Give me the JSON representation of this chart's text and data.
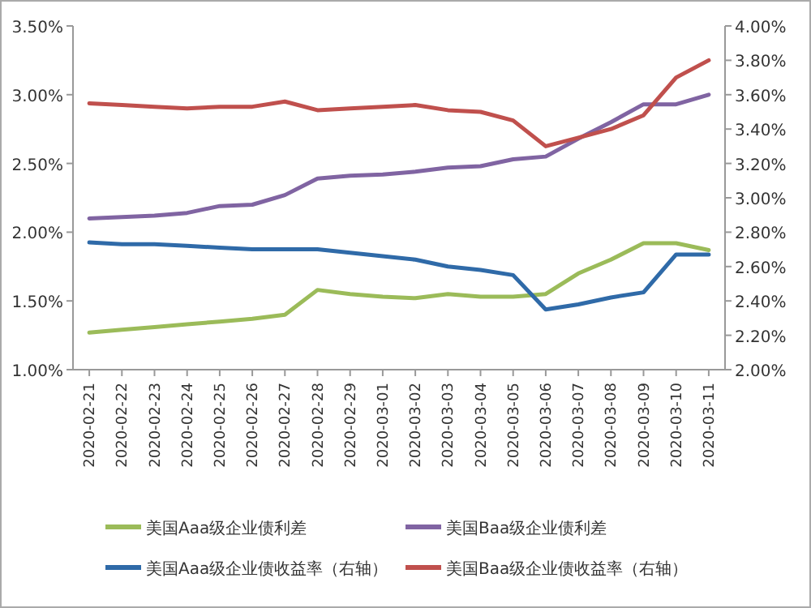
{
  "chart_data": {
    "type": "line",
    "categories": [
      "2020-02-21",
      "2020-02-22",
      "2020-02-23",
      "2020-02-24",
      "2020-02-25",
      "2020-02-26",
      "2020-02-27",
      "2020-02-28",
      "2020-02-29",
      "2020-03-01",
      "2020-03-02",
      "2020-03-03",
      "2020-03-04",
      "2020-03-05",
      "2020-03-06",
      "2020-03-07",
      "2020-03-08",
      "2020-03-09",
      "2020-03-10",
      "2020-03-11"
    ],
    "series": [
      {
        "name": "美国Aaa级企业债利差",
        "color": "#9bbb59",
        "values": [
          1.27,
          1.29,
          1.31,
          1.33,
          1.35,
          1.37,
          1.4,
          1.58,
          1.55,
          1.53,
          1.52,
          1.55,
          1.53,
          1.53,
          1.55,
          1.7,
          1.8,
          1.92,
          1.92,
          1.87
        ]
      },
      {
        "name": "美国Baa级企业债利差",
        "color": "#8064a2",
        "values": [
          2.1,
          2.11,
          2.12,
          2.14,
          2.19,
          2.2,
          2.27,
          2.39,
          2.41,
          2.42,
          2.44,
          2.47,
          2.48,
          2.53,
          2.55,
          2.68,
          2.8,
          2.93,
          2.93,
          3.0
        ]
      },
      {
        "name": "美国Aaa级企业债收益率（右轴）",
        "color": "#2f6aa8",
        "axis": "y2",
        "values": [
          2.74,
          2.73,
          2.73,
          2.72,
          2.71,
          2.7,
          2.7,
          2.7,
          2.68,
          2.66,
          2.64,
          2.6,
          2.58,
          2.55,
          2.35,
          2.38,
          2.42,
          2.45,
          2.67,
          2.67
        ]
      },
      {
        "name": "美国Baa级企业债收益率（右轴）",
        "color": "#c0504d",
        "axis": "y2",
        "values": [
          3.55,
          3.54,
          3.53,
          3.52,
          3.53,
          3.53,
          3.56,
          3.51,
          3.52,
          3.53,
          3.54,
          3.51,
          3.5,
          3.45,
          3.3,
          3.35,
          3.4,
          3.48,
          3.7,
          3.8
        ]
      }
    ],
    "ylim": [
      1.0,
      3.5
    ],
    "yticks": [
      {
        "value": 1.0,
        "label": "1.00%"
      },
      {
        "value": 1.5,
        "label": "1.50%"
      },
      {
        "value": 2.0,
        "label": "2.00%"
      },
      {
        "value": 2.5,
        "label": "2.50%"
      },
      {
        "value": 3.0,
        "label": "3.00%"
      },
      {
        "value": 3.5,
        "label": "3.50%"
      }
    ],
    "y2lim": [
      2.0,
      4.0
    ],
    "y2ticks": [
      {
        "value": 2.0,
        "label": "2.00%"
      },
      {
        "value": 2.2,
        "label": "2.20%"
      },
      {
        "value": 2.4,
        "label": "2.40%"
      },
      {
        "value": 2.6,
        "label": "2.60%"
      },
      {
        "value": 2.8,
        "label": "2.80%"
      },
      {
        "value": 3.0,
        "label": "3.00%"
      },
      {
        "value": 3.2,
        "label": "3.20%"
      },
      {
        "value": 3.4,
        "label": "3.40%"
      },
      {
        "value": 3.6,
        "label": "3.60%"
      },
      {
        "value": 3.8,
        "label": "3.80%"
      },
      {
        "value": 4.0,
        "label": "4.00%"
      }
    ],
    "legend": "bottom",
    "marker": "none",
    "line_style": "solid",
    "grid": false
  }
}
